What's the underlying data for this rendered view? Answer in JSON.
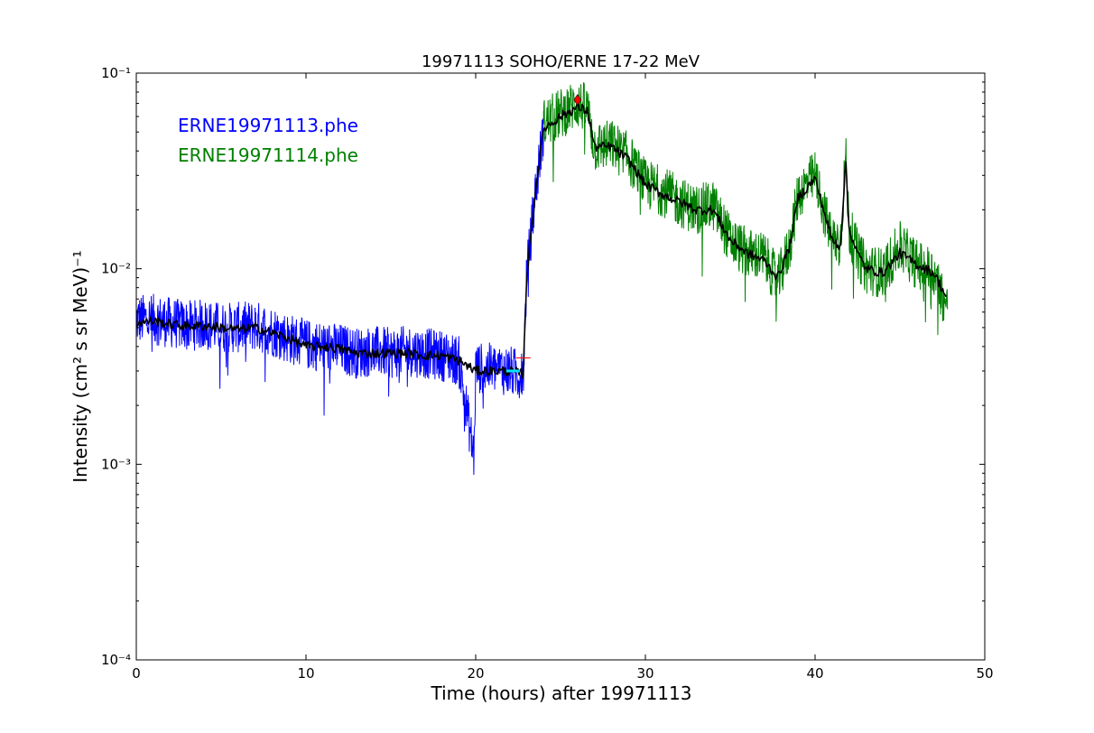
{
  "chart_data": {
    "type": "line",
    "title": "19971113 SOHO/ERNE 17-22 MeV",
    "xlabel": "Time (hours) after 19971113",
    "ylabel": "Intensity (cm² s sr MeV)⁻¹",
    "xlim": [
      0,
      50
    ],
    "ylim": [
      0.0001,
      0.1
    ],
    "yscale": "log",
    "grid": false,
    "legend_placement": "top-left",
    "x_ticks": [
      {
        "value": 0,
        "label": "0"
      },
      {
        "value": 10,
        "label": "10"
      },
      {
        "value": 20,
        "label": "20"
      },
      {
        "value": 30,
        "label": "30"
      },
      {
        "value": 40,
        "label": "40"
      },
      {
        "value": 50,
        "label": "50"
      }
    ],
    "y_ticks": [
      {
        "value": 0.0001,
        "label": "10⁻⁴"
      },
      {
        "value": 0.001,
        "label": "10⁻³"
      },
      {
        "value": 0.01,
        "label": "10⁻²"
      },
      {
        "value": 0.1,
        "label": "10⁻¹"
      }
    ],
    "series": [
      {
        "name": "ERNE19971113.phe",
        "color": "#0000ff",
        "style": "noisy",
        "x": [
          0,
          1,
          2,
          3,
          4,
          5,
          6,
          7,
          8,
          9,
          10,
          11,
          12,
          13,
          14,
          15,
          16,
          17,
          18,
          19,
          19.9,
          20,
          21,
          22,
          22.8,
          23,
          23.5,
          24
        ],
        "y": [
          0.0055,
          0.0055,
          0.0053,
          0.0051,
          0.0052,
          0.005,
          0.005,
          0.0051,
          0.0048,
          0.0044,
          0.0041,
          0.004,
          0.0039,
          0.0037,
          0.0038,
          0.0037,
          0.0038,
          0.0037,
          0.0036,
          0.0034,
          0.0011,
          0.0031,
          0.0031,
          0.003,
          0.0028,
          0.009,
          0.024,
          0.052
        ]
      },
      {
        "name": "ERNE19971114.phe",
        "color": "#008000",
        "style": "noisy",
        "x": [
          24,
          25,
          26,
          26.6,
          27,
          28,
          29,
          30,
          31,
          32,
          33,
          34,
          35,
          36,
          37,
          37.8,
          38.5,
          39,
          40,
          40.5,
          41,
          41.5,
          41.8,
          42,
          42.5,
          43,
          44,
          45,
          46,
          47,
          47.8
        ],
        "y": [
          0.055,
          0.062,
          0.07,
          0.065,
          0.042,
          0.043,
          0.037,
          0.027,
          0.025,
          0.022,
          0.02,
          0.021,
          0.014,
          0.012,
          0.0115,
          0.0085,
          0.013,
          0.024,
          0.03,
          0.02,
          0.014,
          0.014,
          0.038,
          0.016,
          0.012,
          0.01,
          0.0095,
          0.013,
          0.0105,
          0.0095,
          0.0062
        ]
      },
      {
        "name": "",
        "color": "#000000",
        "style": "smooth",
        "x": [
          0,
          1,
          2,
          3,
          4,
          5,
          6,
          7,
          8,
          9,
          10,
          11,
          12,
          13,
          14,
          15,
          16,
          17,
          18,
          19,
          20,
          21,
          22,
          22.8,
          23,
          23.5,
          24,
          25,
          26,
          26.6,
          27,
          28,
          29,
          30,
          31,
          32,
          33,
          34,
          35,
          36,
          37,
          37.8,
          38.5,
          39,
          40,
          40.5,
          41,
          41.5,
          41.8,
          42,
          42.5,
          43,
          44,
          45,
          46,
          47,
          47.8
        ],
        "y": [
          0.0053,
          0.0054,
          0.0052,
          0.0051,
          0.0051,
          0.005,
          0.0049,
          0.005,
          0.0047,
          0.0044,
          0.004,
          0.004,
          0.0039,
          0.0037,
          0.0037,
          0.0037,
          0.0037,
          0.0036,
          0.0036,
          0.0034,
          0.003,
          0.003,
          0.003,
          0.0029,
          0.009,
          0.024,
          0.052,
          0.06,
          0.067,
          0.064,
          0.042,
          0.042,
          0.036,
          0.027,
          0.024,
          0.022,
          0.02,
          0.02,
          0.014,
          0.012,
          0.011,
          0.009,
          0.013,
          0.023,
          0.029,
          0.02,
          0.014,
          0.013,
          0.036,
          0.016,
          0.012,
          0.01,
          0.0095,
          0.012,
          0.0105,
          0.0095,
          0.007
        ]
      }
    ],
    "markers": [
      {
        "x": 26,
        "y": 0.073,
        "shape": "diamond",
        "color": "#ff0000"
      },
      {
        "x": 22.7,
        "y": 0.0035,
        "shape": "hline",
        "color": "#ff0000"
      }
    ],
    "highlight": {
      "x": [
        21.8,
        22.6
      ],
      "y": 0.003,
      "color": "#00e5ff"
    }
  }
}
